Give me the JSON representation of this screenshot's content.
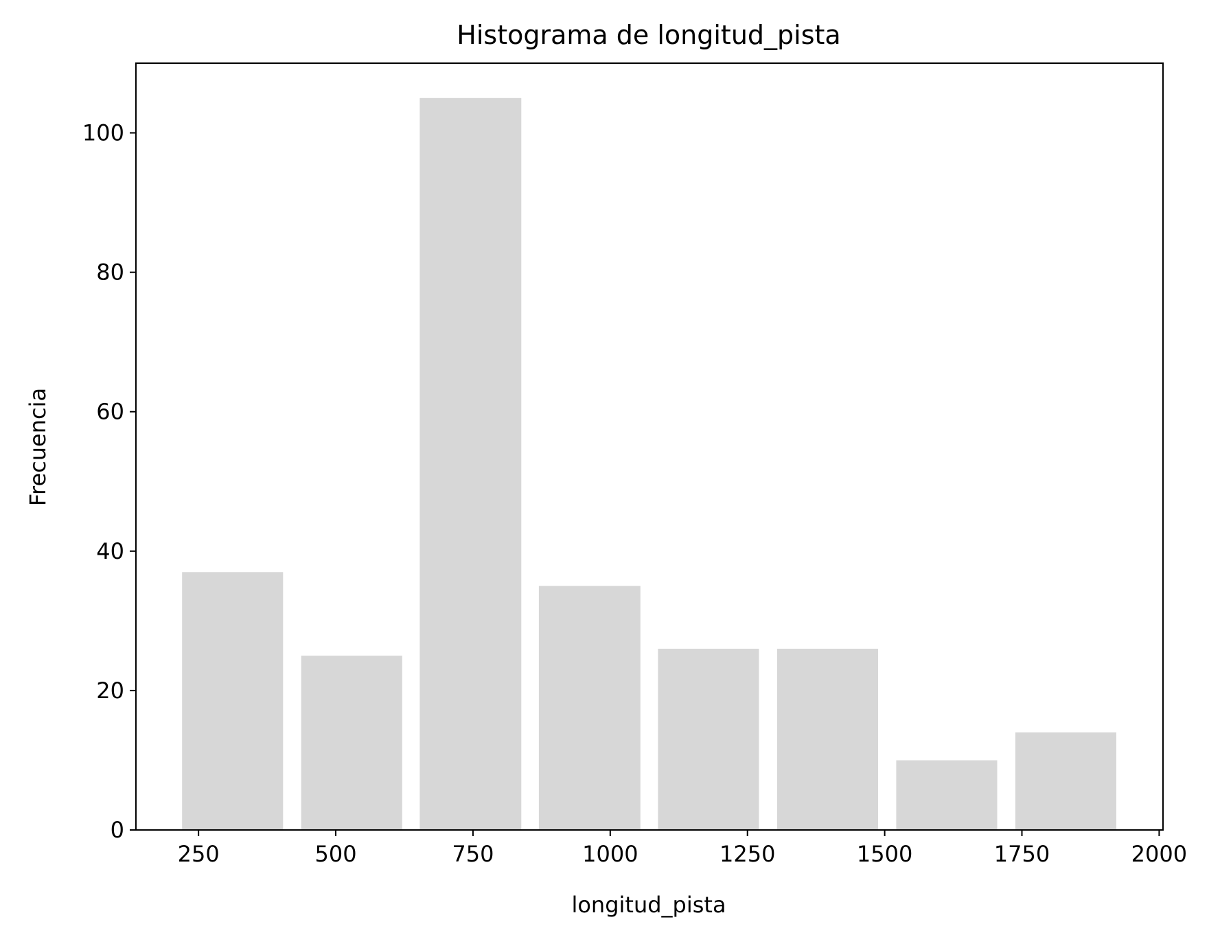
{
  "chart_data": {
    "type": "bar",
    "title": "Histograma de longitud_pista",
    "xlabel": "longitud_pista",
    "ylabel": "Frecuencia",
    "xlim": [
      136,
      2007
    ],
    "ylim": [
      0,
      110
    ],
    "xticks": [
      250,
      500,
      750,
      1000,
      1250,
      1500,
      1750,
      2000
    ],
    "xtick_labels": [
      "250",
      "500",
      "750",
      "1000",
      "1250",
      "1500",
      "1750",
      "2000"
    ],
    "yticks": [
      0,
      20,
      40,
      60,
      80,
      100
    ],
    "ytick_labels": [
      "0",
      "20",
      "40",
      "60",
      "80",
      "100"
    ],
    "bins": [
      {
        "start": 220,
        "end": 404,
        "count": 37
      },
      {
        "start": 437,
        "end": 621,
        "count": 25
      },
      {
        "start": 653,
        "end": 838,
        "count": 105
      },
      {
        "start": 870,
        "end": 1055,
        "count": 35
      },
      {
        "start": 1087,
        "end": 1271,
        "count": 26
      },
      {
        "start": 1304,
        "end": 1488,
        "count": 26
      },
      {
        "start": 1521,
        "end": 1705,
        "count": 10
      },
      {
        "start": 1738,
        "end": 1922,
        "count": 14
      }
    ],
    "bar_color": "#d7d7d7",
    "grid": false,
    "legend": "none"
  }
}
